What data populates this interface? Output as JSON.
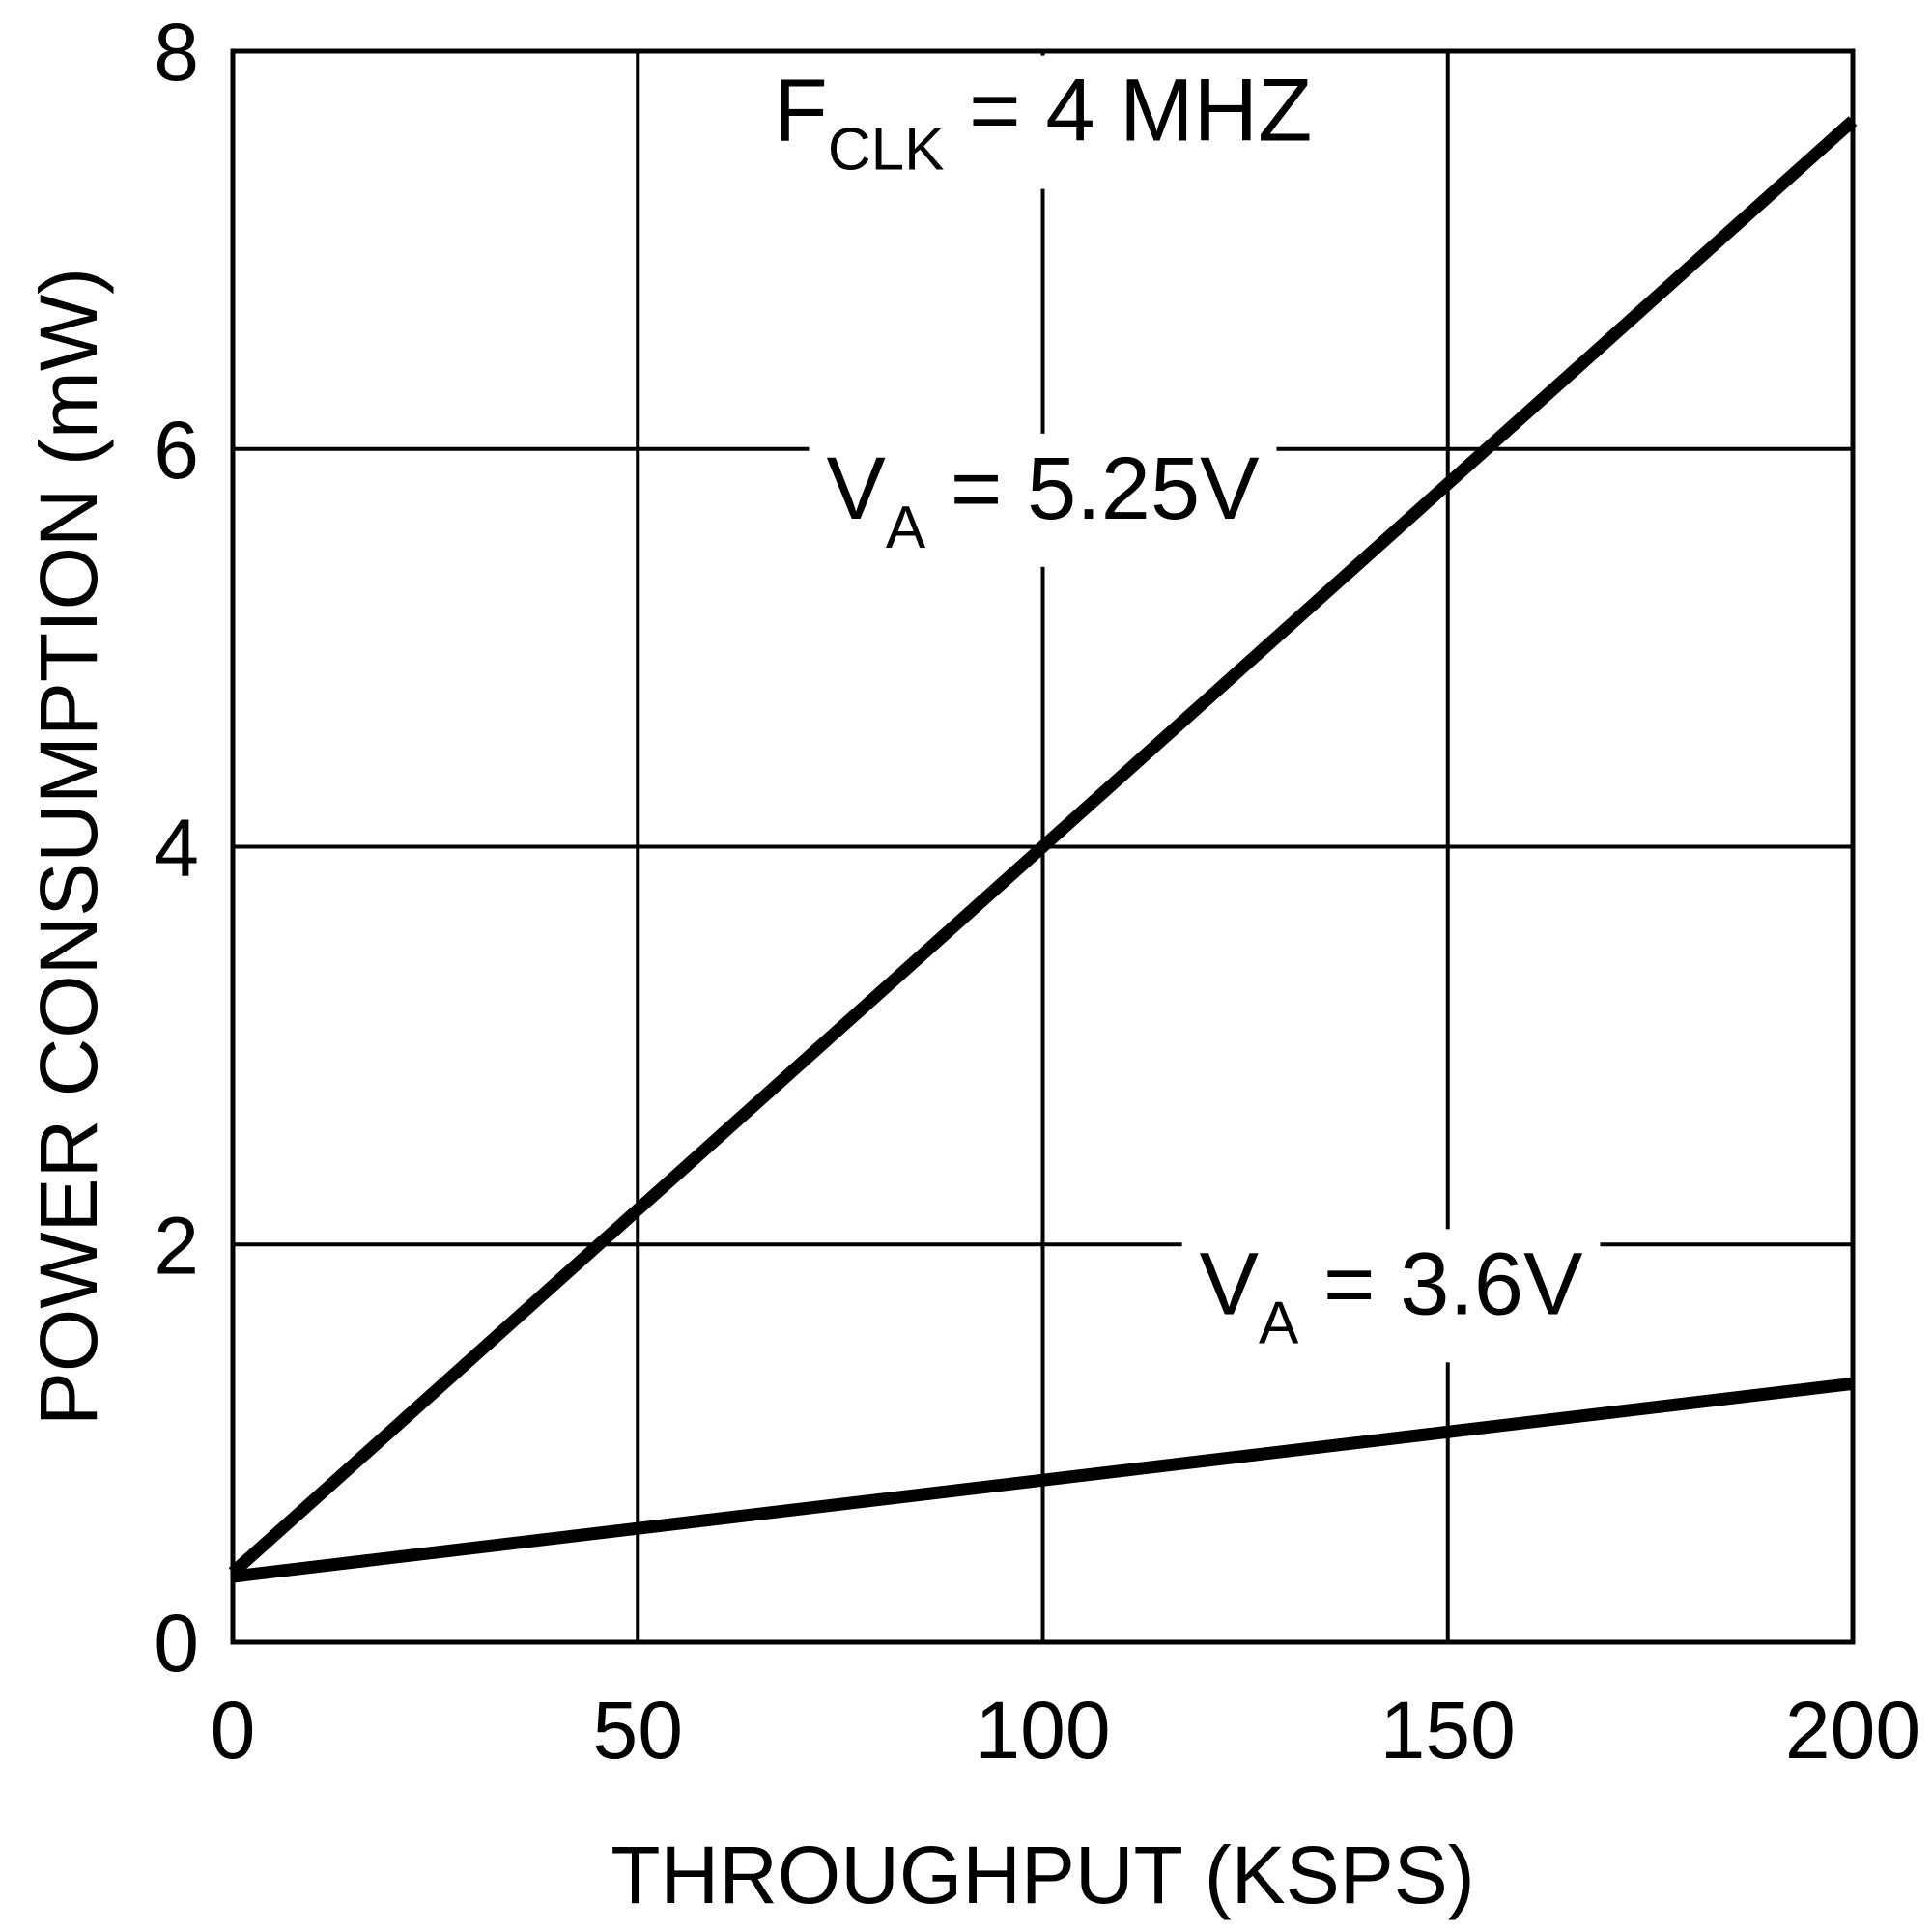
{
  "chart_data": {
    "type": "line",
    "title": "",
    "xlabel": "THROUGHPUT (KSPS)",
    "ylabel": "POWER CONSUMPTION (mW)",
    "xlim": [
      0,
      200
    ],
    "ylim": [
      0,
      8
    ],
    "x_ticks": [
      "0",
      "50",
      "100",
      "150",
      "200"
    ],
    "y_ticks": [
      "0",
      "2",
      "4",
      "6",
      "8"
    ],
    "grid": true,
    "legend": "none",
    "series": [
      {
        "name": "VA = 5.25V",
        "x": [
          0,
          200
        ],
        "y": [
          0.35,
          7.65
        ]
      },
      {
        "name": "VA = 3.6V",
        "x": [
          0,
          200
        ],
        "y": [
          0.33,
          1.3
        ]
      }
    ],
    "annotations": [
      {
        "main": "F",
        "sub": "CLK",
        "rest": " = 4 MHZ",
        "x": 100,
        "y": 7.55
      },
      {
        "main": "V",
        "sub": "A",
        "rest": " = 5.25V",
        "x": 100,
        "y": 5.65
      },
      {
        "main": "V",
        "sub": "A",
        "rest": " = 3.6V",
        "x": 143,
        "y": 1.65
      }
    ],
    "colors": {
      "line": "#000000",
      "grid": "#000000",
      "background": "#ffffff"
    }
  }
}
